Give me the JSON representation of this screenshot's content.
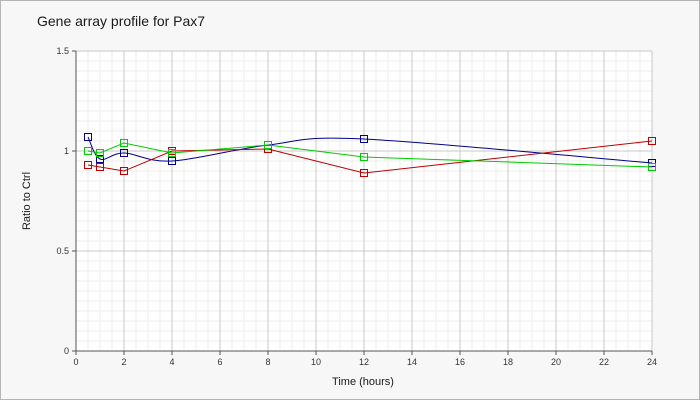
{
  "chart_data": {
    "type": "line",
    "title": "Gene array profile for Pax7",
    "xlabel": "Time (hours)",
    "ylabel": "Ratio to Ctrl",
    "xlim": [
      0,
      24
    ],
    "ylim": [
      0,
      1.5
    ],
    "x_ticks": [
      "0",
      "2",
      "4",
      "6",
      "8",
      "10",
      "12",
      "14",
      "16",
      "18",
      "20",
      "22",
      "24"
    ],
    "y_ticks": [
      "0",
      "0.5",
      "1",
      "1.5"
    ],
    "grid": true,
    "legend": "none",
    "series": [
      {
        "color": "#00008b",
        "smooth": true,
        "points": [
          [
            0.5,
            1.07
          ],
          [
            1,
            0.96
          ],
          [
            2,
            0.99
          ],
          [
            4,
            0.95
          ],
          [
            8,
            1.03
          ],
          [
            12,
            1.06
          ],
          [
            24,
            0.94
          ]
        ]
      },
      {
        "color": "#c00000",
        "smooth": false,
        "points": [
          [
            0.5,
            0.93
          ],
          [
            1,
            0.92
          ],
          [
            2,
            0.9
          ],
          [
            4,
            1.0
          ],
          [
            8,
            1.01
          ],
          [
            12,
            0.89
          ],
          [
            24,
            1.05
          ]
        ]
      },
      {
        "color": "#00cc00",
        "smooth": false,
        "points": [
          [
            0.5,
            1.0
          ],
          [
            1,
            0.99
          ],
          [
            2,
            1.04
          ],
          [
            4,
            0.99
          ],
          [
            8,
            1.03
          ],
          [
            12,
            0.97
          ],
          [
            24,
            0.92
          ]
        ]
      }
    ]
  }
}
